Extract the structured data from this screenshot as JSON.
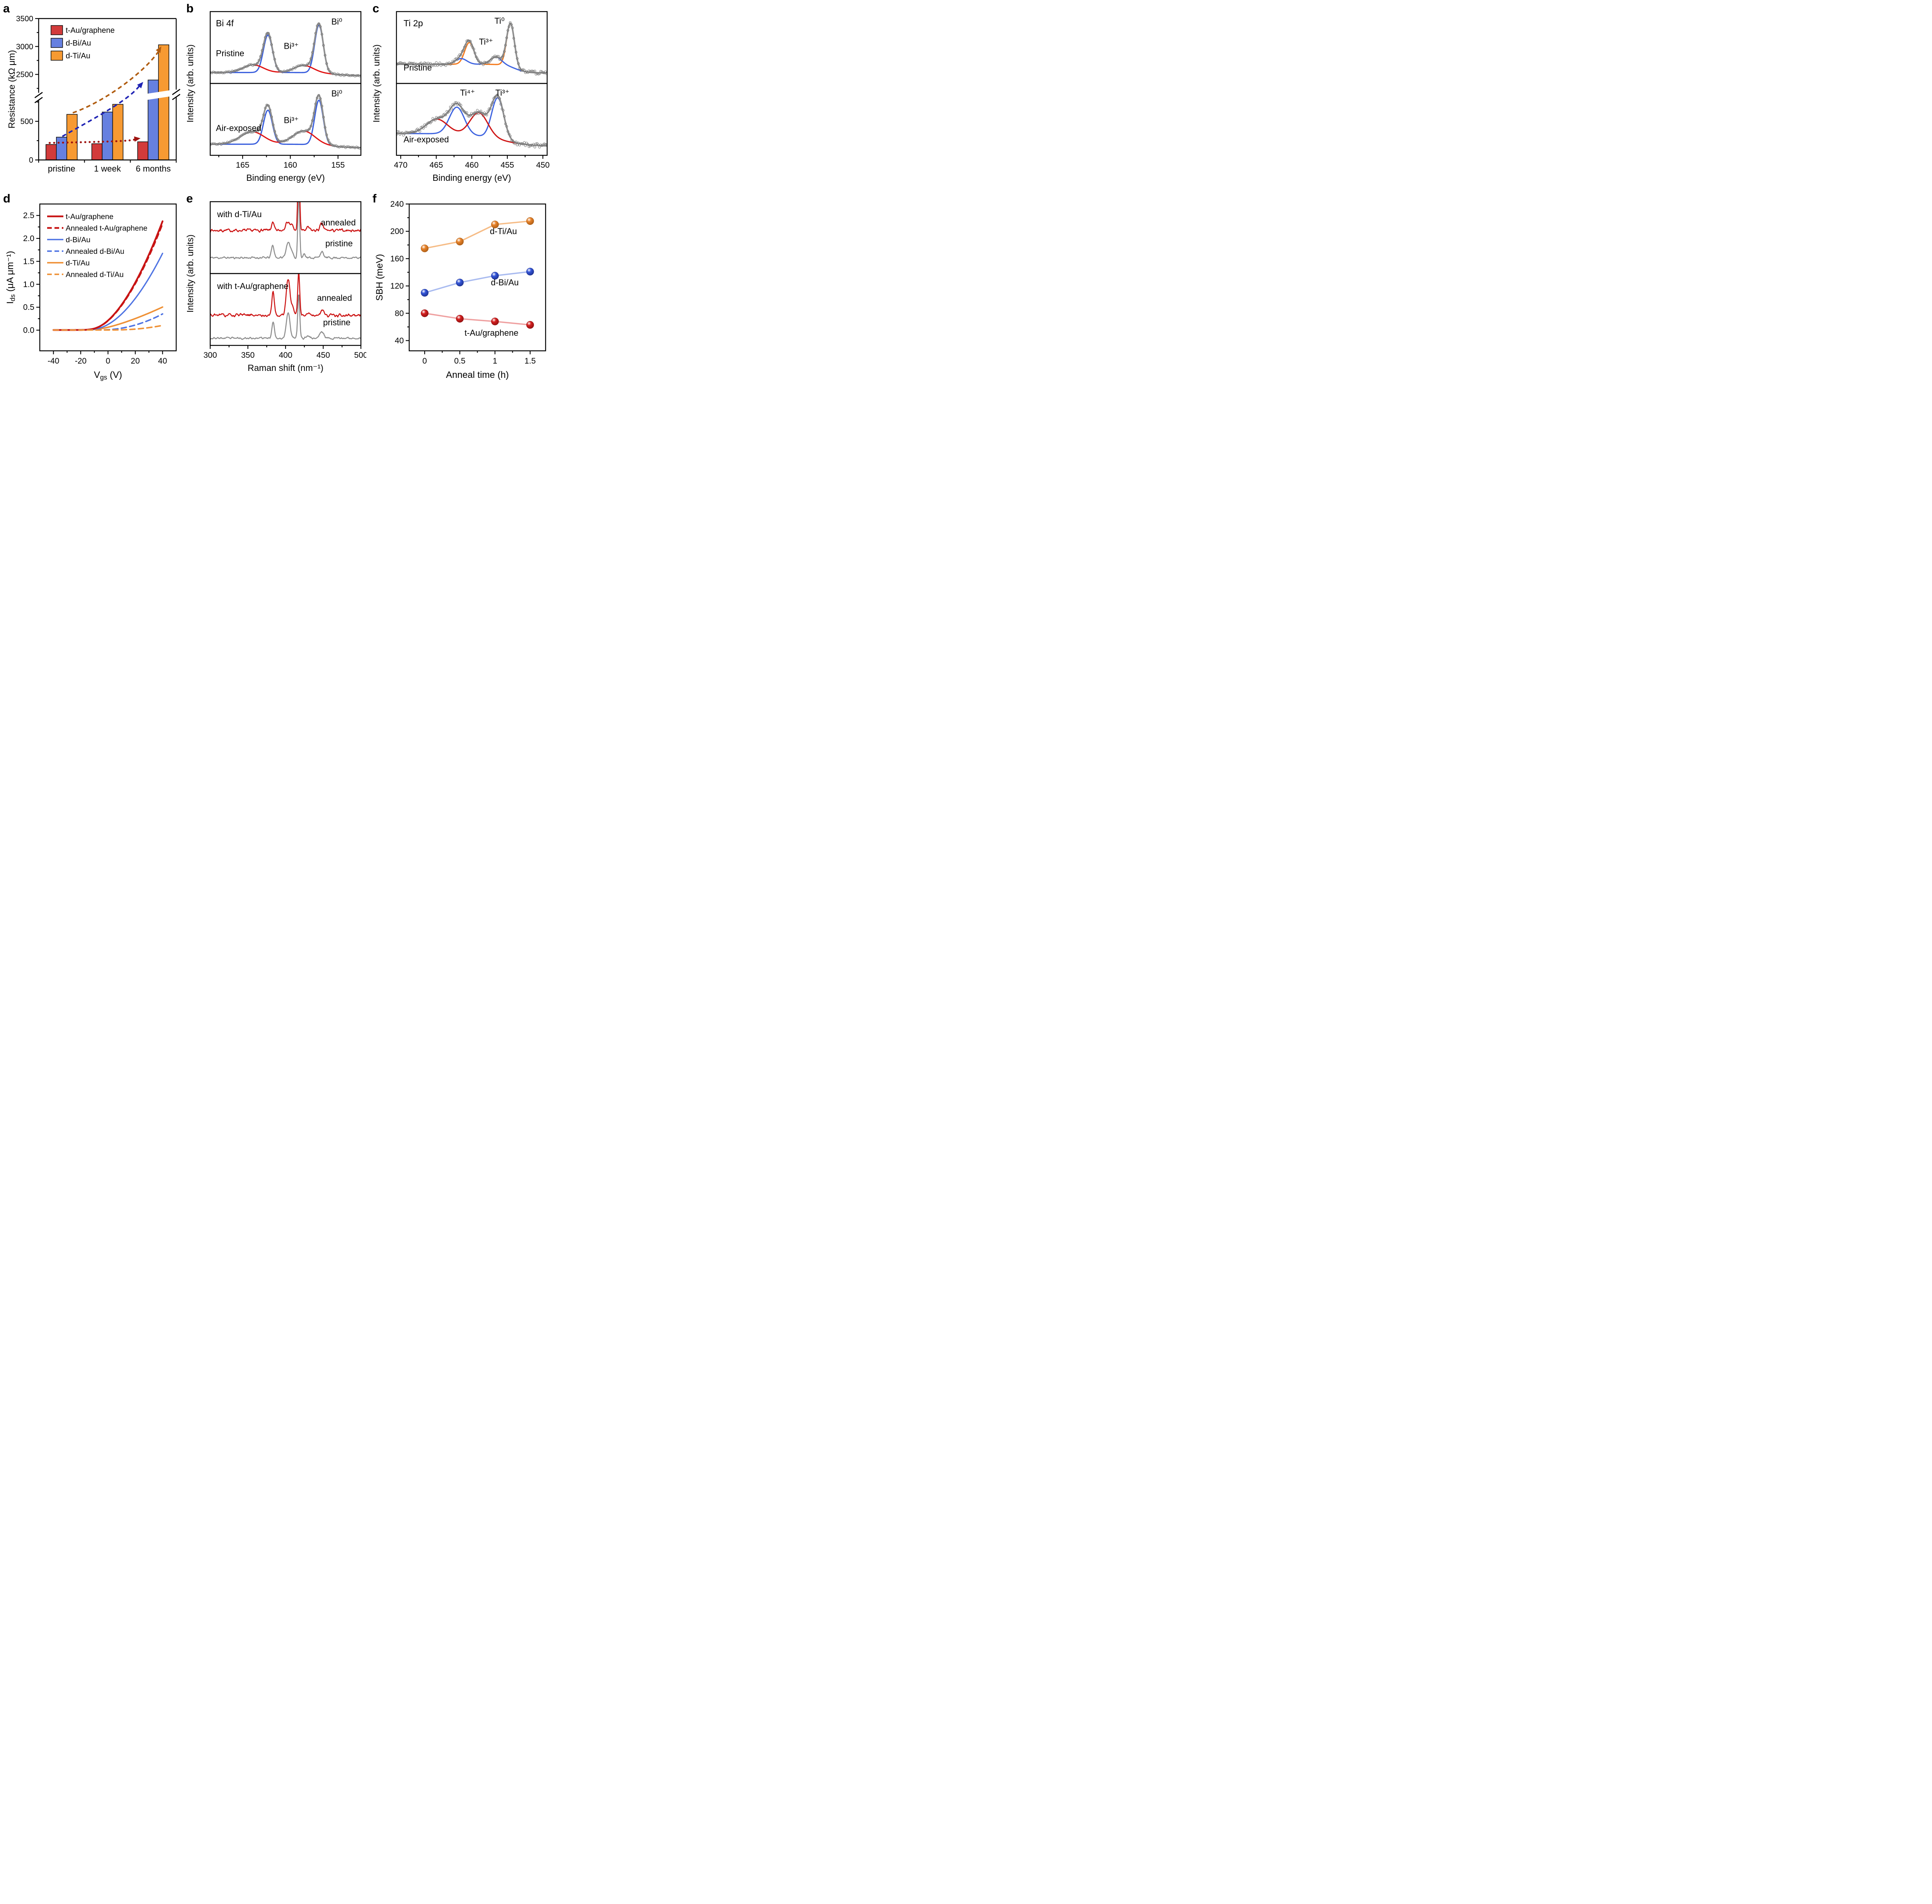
{
  "panels": {
    "a": {
      "label": "a"
    },
    "b": {
      "label": "b"
    },
    "c": {
      "label": "c"
    },
    "d": {
      "label": "d"
    },
    "e": {
      "label": "e"
    },
    "f": {
      "label": "f"
    }
  },
  "chart_data": [
    {
      "panel": "a",
      "type": "bar",
      "ylabel": "Resistance (kΩ μm)",
      "categories": [
        "pristine",
        "1 week",
        "6 months"
      ],
      "series": [
        {
          "name": "t-Au/graphene",
          "color": "#d23b3b",
          "values": [
            200,
            210,
            235
          ]
        },
        {
          "name": "d-Bi/Au",
          "color": "#6680e0",
          "values": [
            295,
            620,
            2400
          ]
        },
        {
          "name": "d-Ti/Au",
          "color": "#f79a32",
          "values": [
            590,
            720,
            3030
          ]
        }
      ],
      "y_break": {
        "lower_max": 800,
        "upper_min": 2200
      },
      "yticks_lower": [
        0,
        500
      ],
      "yticks_minor_lower": [
        250,
        750
      ],
      "yticks_upper": [
        2500,
        3000,
        3500
      ],
      "yticks_minor_upper": [
        2250,
        2750,
        3250
      ],
      "ylim_top": 3500,
      "arrows": [
        {
          "series": 0,
          "color": "#9e1310",
          "style": "dot"
        },
        {
          "series": 1,
          "color": "#1f23b4",
          "style": "dash"
        },
        {
          "series": 2,
          "color": "#b05c10",
          "style": "dash"
        }
      ]
    },
    {
      "panel": "b",
      "type": "xps",
      "title": "Bi 4f",
      "xlabel": "Binding energy (eV)",
      "ylabel": "Intensity (arb. units)",
      "x_range": [
        168.4,
        152.6
      ],
      "xticks": [
        165,
        160,
        155
      ],
      "xticks_minor": [
        167.5,
        162.5,
        157.5
      ],
      "envelope_color": "#8f8f8f",
      "subpanels": [
        {
          "label": "Pristine",
          "label_x": 167.8,
          "label_yf": 0.62,
          "background": {
            "left": 0.1,
            "right": 0.035,
            "center": 155.6,
            "width": 0.9
          },
          "components": [
            {
              "name": "Bi0 fit",
              "color": "#3a5fdd",
              "peaks": [
                {
                  "c": 157.0,
                  "s": 0.45,
                  "a": 1.0
                },
                {
                  "c": 162.35,
                  "s": 0.47,
                  "a": 0.78
                }
              ]
            },
            {
              "name": "Bi3+ fit",
              "color": "#e01414",
              "peaks": [
                {
                  "c": 158.6,
                  "s": 1.0,
                  "a": 0.15
                },
                {
                  "c": 163.9,
                  "s": 1.05,
                  "a": 0.16
                }
              ]
            }
          ],
          "annotations": [
            {
              "text": "Bi⁰",
              "color": "#000000",
              "x": 155.7,
              "yf": 0.18,
              "anchor": "start"
            },
            {
              "text": "Bi³⁺",
              "color": "#000000",
              "x": 159.9,
              "yf": 0.52,
              "anchor": "middle"
            }
          ]
        },
        {
          "label": "Air-exposed",
          "label_x": 167.8,
          "label_yf": 0.66,
          "background": {
            "left": 0.11,
            "right": 0.03,
            "center": 155.7,
            "width": 1.0
          },
          "components": [
            {
              "name": "Bi0 fit",
              "color": "#3a5fdd",
              "peaks": [
                {
                  "c": 157.0,
                  "s": 0.45,
                  "a": 1.0
                },
                {
                  "c": 162.35,
                  "s": 0.47,
                  "a": 0.76
                }
              ]
            },
            {
              "name": "Bi3+ fit",
              "color": "#e01414",
              "peaks": [
                {
                  "c": 158.6,
                  "s": 1.15,
                  "a": 0.3
                },
                {
                  "c": 164.0,
                  "s": 1.25,
                  "a": 0.28
                }
              ]
            }
          ],
          "annotations": [
            {
              "text": "Bi⁰",
              "color": "#000000",
              "x": 155.7,
              "yf": 0.18,
              "anchor": "start"
            },
            {
              "text": "Bi³⁺",
              "color": "#000000",
              "x": 159.9,
              "yf": 0.55,
              "anchor": "middle"
            }
          ]
        }
      ]
    },
    {
      "panel": "c",
      "type": "xps",
      "title": "Ti 2p",
      "xlabel": "Binding energy (eV)",
      "ylabel": "Intensity (arb. units)",
      "x_range": [
        470.6,
        449.4
      ],
      "xticks": [
        470,
        465,
        460,
        455,
        450
      ],
      "xticks_minor": [
        467.5,
        462.5,
        457.5,
        452.5
      ],
      "envelope_color": "#8f8f8f",
      "noisy": true,
      "subpanels": [
        {
          "label": "Pristine",
          "label_x": 469.6,
          "label_yf": 0.82,
          "background": {
            "left": 0.3,
            "right": 0.1,
            "center": 453.9,
            "width": 0.8
          },
          "components": [
            {
              "name": "Ti0 fit",
              "color": "#f4791c",
              "peaks": [
                {
                  "c": 454.55,
                  "s": 0.55,
                  "a": 1.0
                },
                {
                  "c": 460.35,
                  "s": 0.65,
                  "a": 0.5
                }
              ]
            },
            {
              "name": "Ti3+ fit",
              "color": "#4065e0",
              "peaks": [
                {
                  "c": 456.6,
                  "s": 0.8,
                  "a": 0.17
                },
                {
                  "c": 461.5,
                  "s": 0.8,
                  "a": 0.13
                }
              ]
            }
          ],
          "annotations": [
            {
              "text": "Ti⁰",
              "color": "#f4791c",
              "x": 456.1,
              "yf": 0.17,
              "anchor": "middle"
            },
            {
              "text": "Ti³⁺",
              "color": "#4065e0",
              "x": 458.0,
              "yf": 0.46,
              "anchor": "middle"
            }
          ]
        },
        {
          "label": "Air-exposed",
          "label_x": 469.6,
          "label_yf": 0.82,
          "background": {
            "left": 0.3,
            "right": 0.05,
            "center": 456.0,
            "width": 2.2
          },
          "components": [
            {
              "name": "Ti3+ fit",
              "color": "#4065e0",
              "peaks": [
                {
                  "c": 456.35,
                  "s": 0.85,
                  "a": 0.8
                },
                {
                  "c": 462.1,
                  "s": 1.05,
                  "a": 0.52
                }
              ]
            },
            {
              "name": "Ti4+ fit",
              "color": "#cf1616",
              "peaks": [
                {
                  "c": 459.0,
                  "s": 1.25,
                  "a": 0.45
                },
                {
                  "c": 464.9,
                  "s": 1.5,
                  "a": 0.28
                }
              ]
            }
          ],
          "annotations": [
            {
              "text": "Ti⁴⁺",
              "color": "#cf1616",
              "x": 460.6,
              "yf": 0.17,
              "anchor": "middle"
            },
            {
              "text": "Ti³⁺",
              "color": "#4065e0",
              "x": 455.7,
              "yf": 0.17,
              "anchor": "middle"
            }
          ]
        }
      ]
    },
    {
      "panel": "d",
      "type": "transfer",
      "xlabel_parts": [
        {
          "t": "V"
        },
        {
          "t": "gs",
          "sub": true
        },
        {
          "t": " (V)"
        }
      ],
      "ylabel_parts": [
        {
          "t": "I"
        },
        {
          "t": "ds",
          "sub": true
        },
        {
          "t": " (μA μm⁻¹)"
        }
      ],
      "xlim": [
        -50,
        50
      ],
      "ylim": [
        -0.45,
        2.75
      ],
      "xticks": [
        -40,
        -20,
        0,
        20,
        40
      ],
      "xticks_minor": [
        -30,
        -10,
        10,
        30
      ],
      "ytick_vals": [
        0,
        0.5,
        1,
        1.5,
        2,
        2.5
      ],
      "yticks": [
        "0.0",
        "0.5",
        "1.0",
        "1.5",
        "2.0",
        "2.5"
      ],
      "yticks_minor": [
        0.25,
        0.75,
        1.25,
        1.75,
        2.25
      ],
      "series": [
        {
          "name": "t-Au/graphene",
          "color": "#c81414",
          "dash": false,
          "vth": -13,
          "p": 1.75,
          "imax": 2.37,
          "width": 4.5
        },
        {
          "name": "Annealed t-Au/graphene",
          "color": "#c81414",
          "dash": true,
          "vth": -13,
          "p": 1.75,
          "imax": 2.32,
          "width": 4.5
        },
        {
          "name": "d-Bi/Au",
          "color": "#4f74e3",
          "dash": false,
          "vth": -12.5,
          "p": 1.85,
          "imax": 1.67,
          "width": 3.4
        },
        {
          "name": "Annealed d-Bi/Au",
          "color": "#4f74e3",
          "dash": true,
          "vth": -5,
          "p": 2.0,
          "imax": 0.35,
          "width": 3.8
        },
        {
          "name": "d-Ti/Au",
          "color": "#ef9136",
          "dash": false,
          "vth": -11,
          "p": 1.4,
          "imax": 0.5,
          "width": 3.8
        },
        {
          "name": "Annealed d-Ti/Au",
          "color": "#ef9136",
          "dash": true,
          "vth": 2,
          "p": 2.2,
          "imax": 0.1,
          "width": 3.8
        }
      ]
    },
    {
      "panel": "e",
      "type": "raman",
      "xlabel": "Raman shift (nm⁻¹)",
      "ylabel": "Intensity (arb. units)",
      "x_range": [
        300,
        500
      ],
      "xticks": [
        300,
        350,
        400,
        450,
        500
      ],
      "xticks_minor": [
        325,
        375,
        425,
        475
      ],
      "subpanels": [
        {
          "label": "with d-Ti/Au",
          "traces": [
            {
              "name": "pristine",
              "color": "#8e8e8e",
              "baseline": 0.22,
              "noise": 0.022,
              "seed": 11,
              "peaks": [
                {
                  "c": 383,
                  "s": 1.8,
                  "a": 0.17
                },
                {
                  "c": 403.5,
                  "s": 2.6,
                  "a": 0.22
                },
                {
                  "c": 409,
                  "s": 1.5,
                  "a": 0.07
                },
                {
                  "c": 417.5,
                  "s": 1.2,
                  "a": 0.9
                },
                {
                  "c": 425,
                  "s": 1.5,
                  "a": 0.06
                },
                {
                  "c": 448,
                  "s": 2.2,
                  "a": 0.08
                }
              ]
            },
            {
              "name": "annealed",
              "color": "#cc1414",
              "baseline": 0.6,
              "noise": 0.03,
              "seed": 7,
              "peaks": [
                {
                  "c": 383,
                  "s": 1.8,
                  "a": 0.1
                },
                {
                  "c": 403,
                  "s": 3.2,
                  "a": 0.12
                },
                {
                  "c": 409,
                  "s": 1.5,
                  "a": 0.05
                },
                {
                  "c": 417.5,
                  "s": 1.2,
                  "a": 1.05
                },
                {
                  "c": 430,
                  "s": 2.0,
                  "a": 0.04
                },
                {
                  "c": 448,
                  "s": 2.2,
                  "a": 0.09
                }
              ]
            }
          ],
          "annotations": [
            {
              "text": "annealed",
              "color": "#cc1414",
              "x": 470,
              "yf": 0.33,
              "anchor": "middle"
            },
            {
              "text": "pristine",
              "color": "#8e8e8e",
              "x": 471,
              "yf": 0.62,
              "anchor": "middle"
            }
          ]
        },
        {
          "label": "with t-Au/graphene",
          "traces": [
            {
              "name": "pristine",
              "color": "#8e8e8e",
              "baseline": 0.1,
              "noise": 0.02,
              "seed": 23,
              "peaks": [
                {
                  "c": 383.5,
                  "s": 1.6,
                  "a": 0.24
                },
                {
                  "c": 403.5,
                  "s": 2.4,
                  "a": 0.36
                },
                {
                  "c": 417.5,
                  "s": 1.3,
                  "a": 0.62
                },
                {
                  "c": 430,
                  "s": 2.0,
                  "a": 0.04
                },
                {
                  "c": 448,
                  "s": 2.8,
                  "a": 0.09
                }
              ]
            },
            {
              "name": "annealed",
              "color": "#cc1414",
              "baseline": 0.42,
              "noise": 0.03,
              "seed": 31,
              "peaks": [
                {
                  "c": 383.5,
                  "s": 1.6,
                  "a": 0.33
                },
                {
                  "c": 403.5,
                  "s": 2.6,
                  "a": 0.5
                },
                {
                  "c": 410,
                  "s": 1.6,
                  "a": 0.1
                },
                {
                  "c": 417.5,
                  "s": 1.3,
                  "a": 0.62
                },
                {
                  "c": 430,
                  "s": 2.0,
                  "a": 0.04
                },
                {
                  "c": 449,
                  "s": 2.5,
                  "a": 0.07
                }
              ]
            }
          ],
          "annotations": [
            {
              "text": "annealed",
              "color": "#cc1414",
              "x": 465,
              "yf": 0.38,
              "anchor": "middle"
            },
            {
              "text": "pristine",
              "color": "#8e8e8e",
              "x": 468,
              "yf": 0.72,
              "anchor": "middle"
            }
          ]
        }
      ]
    },
    {
      "panel": "f",
      "type": "scatter",
      "xlabel": "Anneal time (h)",
      "ylabel": "SBH (meV)",
      "x": [
        0,
        0.5,
        1,
        1.5
      ],
      "xticklabels": [
        "0",
        "0.5",
        "1",
        "1.5"
      ],
      "xticks_minor": [
        0.25,
        0.75,
        1.25
      ],
      "xlim": [
        -0.22,
        1.72
      ],
      "ylim": [
        25,
        240
      ],
      "yticks": [
        40,
        80,
        120,
        160,
        200,
        240
      ],
      "yticks_minor": [
        60,
        100,
        140,
        180,
        220
      ],
      "series": [
        {
          "name": "d-Ti/Au",
          "color": "#e8832a",
          "dark": "#a85a14",
          "line_color": "#f6bc86",
          "values": [
            175,
            185,
            210,
            215
          ],
          "label_x": 1.12,
          "label_y": 196
        },
        {
          "name": "d-Bi/Au",
          "color": "#3355d8",
          "dark": "#1c2f8c",
          "line_color": "#a9bbf0",
          "values": [
            110,
            125,
            135,
            141
          ],
          "label_x": 1.14,
          "label_y": 121
        },
        {
          "name": "t-Au/graphene",
          "color": "#d41f1f",
          "dark": "#8c0f0f",
          "line_color": "#efa0a0",
          "values": [
            80,
            72,
            68,
            63
          ],
          "label_x": 0.95,
          "label_y": 47
        }
      ]
    }
  ]
}
